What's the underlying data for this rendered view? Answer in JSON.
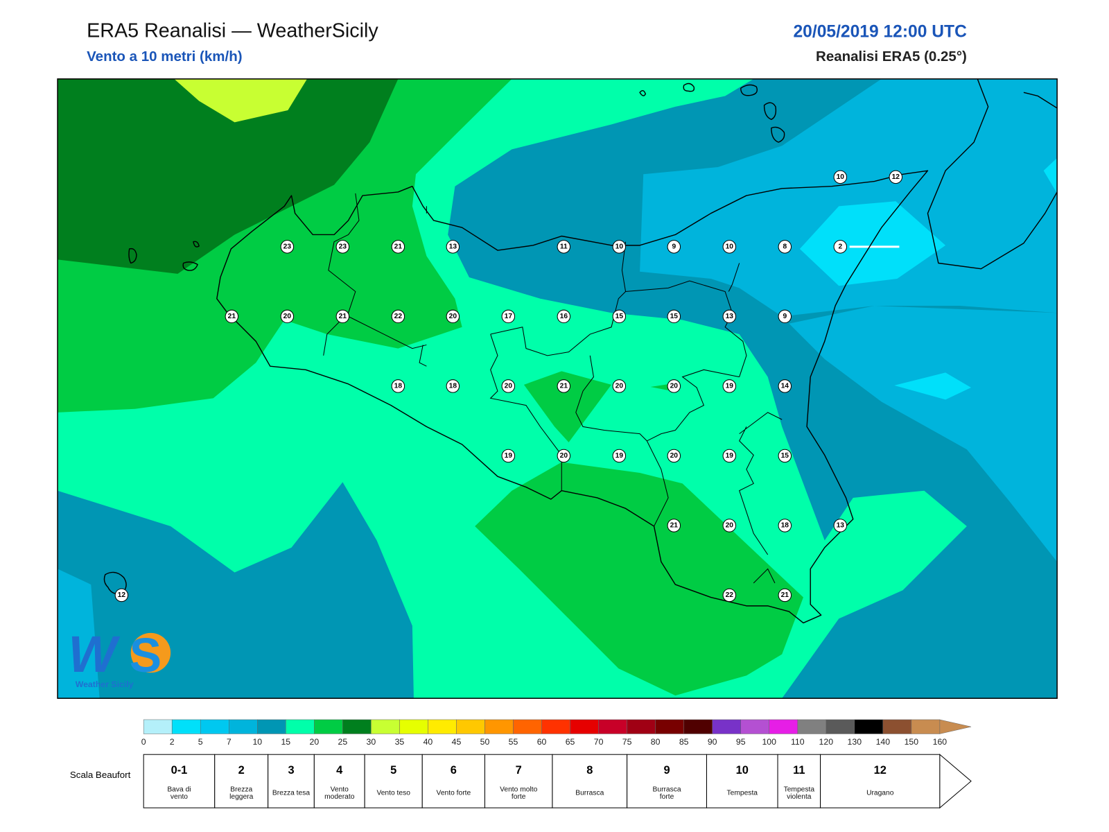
{
  "header": {
    "title": "ERA5 Reanalisi — WeatherSicily",
    "subtitle": "Vento a 10 metri (km/h)",
    "datetime": "20/05/2019 12:00 UTC",
    "source": "Reanalisi ERA5 (0.25°)"
  },
  "logo": {
    "text": "Weather Sicily"
  },
  "stations": [
    10,
    12,
    23,
    23,
    21,
    13,
    11,
    10,
    9,
    10,
    8,
    2,
    21,
    20,
    21,
    22,
    20,
    17,
    16,
    15,
    15,
    13,
    9,
    18,
    18,
    20,
    21,
    20,
    20,
    19,
    14,
    19,
    20,
    19,
    20,
    19,
    15,
    21,
    20,
    18,
    13,
    12,
    22,
    21
  ],
  "colorbar": {
    "ticks": [
      0,
      2,
      5,
      7,
      10,
      15,
      20,
      25,
      30,
      35,
      40,
      45,
      50,
      55,
      60,
      65,
      70,
      75,
      80,
      85,
      90,
      95,
      100,
      110,
      120,
      130,
      140,
      150,
      160
    ],
    "colors": [
      "#b4f0fa",
      "#00e0fa",
      "#00c8f0",
      "#00b4dc",
      "#0096b4",
      "#00ffaa",
      "#00cc44",
      "#007f1e",
      "#c8ff32",
      "#e6ff00",
      "#ffeb00",
      "#ffc800",
      "#ff9600",
      "#ff6400",
      "#ff3200",
      "#e60000",
      "#c80028",
      "#a00014",
      "#780000",
      "#500000",
      "#7832c8",
      "#b450d2",
      "#e61ee6",
      "#808080",
      "#5a5a5a",
      "#000000",
      "#8c5030",
      "#c88c50"
    ]
  },
  "beaufort": {
    "label": "Scala Beaufort",
    "levels": [
      {
        "force": "0-1",
        "name": "Bava di vento"
      },
      {
        "force": "2",
        "name": "Brezza leggera"
      },
      {
        "force": "3",
        "name": "Brezza tesa"
      },
      {
        "force": "4",
        "name": "Vento moderato"
      },
      {
        "force": "5",
        "name": "Vento teso"
      },
      {
        "force": "6",
        "name": "Vento forte"
      },
      {
        "force": "7",
        "name": "Vento molto forte"
      },
      {
        "force": "8",
        "name": "Burrasca"
      },
      {
        "force": "9",
        "name": "Burrasca forte"
      },
      {
        "force": "10",
        "name": "Tempesta"
      },
      {
        "force": "11",
        "name": "Tempesta violenta"
      },
      {
        "force": "12",
        "name": "Uragano"
      }
    ]
  }
}
